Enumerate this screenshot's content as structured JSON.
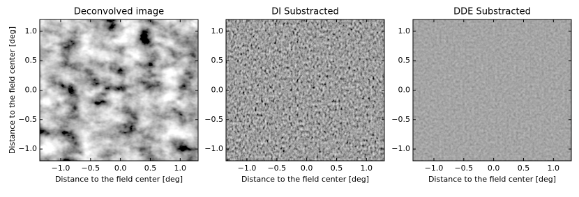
{
  "chart_data": [
    {
      "type": "image",
      "title": "Deconvolved image",
      "xlabel": "Distance to the field center [deg]",
      "ylabel": "Distance to the field center [deg]",
      "xlim": [
        -1.35,
        1.3
      ],
      "ylim": [
        -1.2,
        1.2
      ],
      "xticks": [
        {
          "value": -1,
          "label": "−1.0"
        },
        {
          "value": -0.5,
          "label": "−0.5"
        },
        {
          "value": 0,
          "label": "0.0"
        },
        {
          "value": 0.5,
          "label": "0.5"
        },
        {
          "value": 1,
          "label": "1.0"
        }
      ],
      "yticks": [
        {
          "value": -1,
          "label": "−1.0"
        },
        {
          "value": -0.5,
          "label": "−0.5"
        },
        {
          "value": 0,
          "label": "0.0"
        },
        {
          "value": 0.5,
          "label": "0.5"
        },
        {
          "value": 1,
          "label": "1.0"
        }
      ]
    },
    {
      "type": "image",
      "title": "DI Substracted",
      "xlabel": "Distance to the field center [deg]",
      "xlim": [
        -1.35,
        1.3
      ],
      "ylim": [
        -1.2,
        1.2
      ],
      "xticks": [
        {
          "value": -1,
          "label": "−1.0"
        },
        {
          "value": -0.5,
          "label": "−0.5"
        },
        {
          "value": 0,
          "label": "0.0"
        },
        {
          "value": 0.5,
          "label": "0.5"
        },
        {
          "value": 1,
          "label": "1.0"
        }
      ],
      "yticks": [
        {
          "value": -1,
          "label": "−1.0"
        },
        {
          "value": -0.5,
          "label": "−0.5"
        },
        {
          "value": 0,
          "label": "0.0"
        },
        {
          "value": 0.5,
          "label": "0.5"
        },
        {
          "value": 1,
          "label": "1.0"
        }
      ]
    },
    {
      "type": "image",
      "title": "DDE Substracted",
      "xlabel": "Distance to the field center [deg]",
      "xlim": [
        -1.35,
        1.3
      ],
      "ylim": [
        -1.2,
        1.2
      ],
      "xticks": [
        {
          "value": -1,
          "label": "−1.0"
        },
        {
          "value": -0.5,
          "label": "−0.5"
        },
        {
          "value": 0,
          "label": "0.0"
        },
        {
          "value": 0.5,
          "label": "0.5"
        },
        {
          "value": 1,
          "label": "1.0"
        }
      ],
      "yticks": [
        {
          "value": -1,
          "label": "−1.0"
        },
        {
          "value": -0.5,
          "label": "−0.5"
        },
        {
          "value": 0,
          "label": "0.0"
        },
        {
          "value": 0.5,
          "label": "0.5"
        },
        {
          "value": 1,
          "label": "1.0"
        }
      ]
    }
  ]
}
